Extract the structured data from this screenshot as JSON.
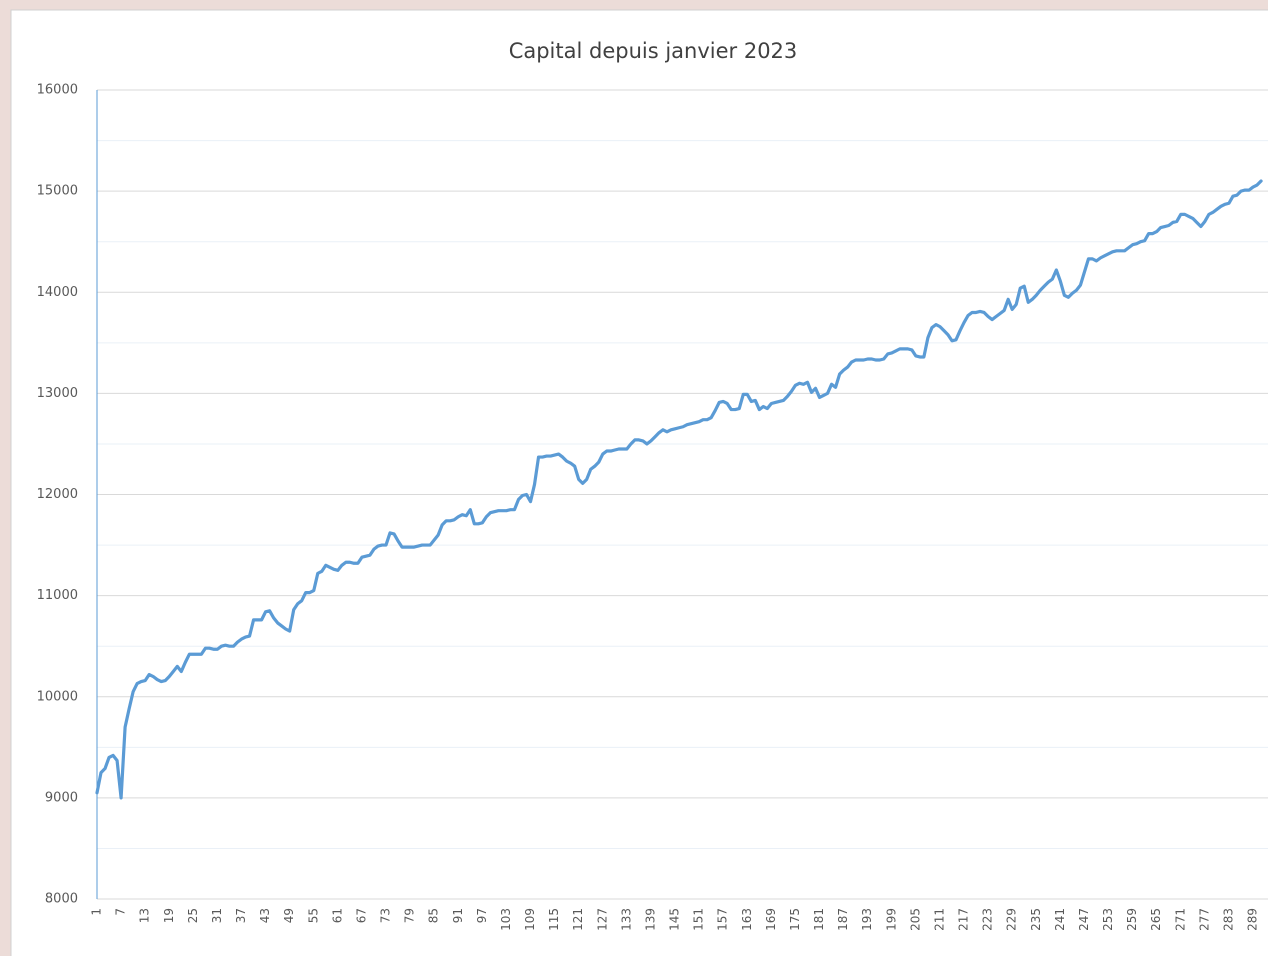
{
  "chart_data": {
    "type": "line",
    "title": "Capital depuis janvier 2023",
    "categories": [
      1,
      null,
      null,
      null,
      null,
      null,
      7,
      null,
      null,
      null,
      null,
      null,
      13,
      null,
      null,
      null,
      null,
      null,
      19,
      null,
      null,
      null,
      null,
      null,
      25,
      null,
      null,
      null,
      null,
      null,
      31,
      null,
      null,
      null,
      null,
      null,
      37,
      null,
      null,
      null,
      null,
      null,
      43,
      null,
      null,
      null,
      null,
      null,
      49,
      null,
      null,
      null,
      null,
      null,
      55,
      null,
      null,
      null,
      null,
      null,
      61,
      null,
      null,
      null,
      null,
      null,
      67,
      null,
      null,
      null,
      null,
      null,
      73,
      null,
      null,
      null,
      null,
      null,
      79,
      null,
      null,
      null,
      null,
      null,
      85,
      null,
      null,
      null,
      null,
      null,
      91,
      null,
      null,
      null,
      null,
      null,
      97,
      null,
      null,
      null,
      null,
      null,
      103,
      null,
      null,
      null,
      null,
      null,
      109,
      null,
      null,
      null,
      null,
      null,
      115,
      null,
      null,
      null,
      null,
      null,
      121,
      null,
      null,
      null,
      null,
      null,
      127,
      null,
      null,
      null,
      null,
      null,
      133,
      null,
      null,
      null,
      null,
      null,
      139,
      null,
      null,
      null,
      null,
      null,
      145,
      null,
      null,
      null,
      null,
      null,
      151,
      null,
      null,
      null,
      null,
      null,
      157,
      null,
      null,
      null,
      null,
      null,
      163,
      null,
      null,
      null,
      null,
      null,
      169,
      null,
      null,
      null,
      null,
      null,
      175,
      null,
      null,
      null,
      null,
      null,
      181,
      null,
      null,
      null,
      null,
      null,
      187,
      null,
      null,
      null,
      null,
      null,
      193,
      null,
      null,
      null,
      null,
      null,
      199,
      null,
      null,
      null,
      null,
      null,
      205,
      null,
      null,
      null,
      null,
      null,
      211,
      null,
      null,
      null,
      null,
      null,
      217,
      null,
      null,
      null,
      null,
      null,
      223,
      null,
      null,
      null,
      null,
      null,
      229,
      null,
      null,
      null,
      null,
      null,
      235,
      null,
      null,
      null,
      null,
      null,
      241,
      null,
      null,
      null,
      null,
      null,
      247,
      null,
      null,
      null,
      null,
      null,
      253,
      null,
      null,
      null,
      null,
      null,
      259,
      null,
      null,
      null,
      null,
      null,
      265,
      null,
      null,
      null,
      null,
      null,
      271,
      null,
      null,
      null,
      null,
      null,
      277,
      null,
      null,
      null,
      null,
      null,
      283,
      null,
      null,
      null,
      null,
      null,
      289,
      null,
      null
    ],
    "values": [
      9050,
      9250,
      9290,
      9400,
      9420,
      9370,
      9000,
      9700,
      9880,
      10050,
      10130,
      10150,
      10160,
      10220,
      10200,
      10170,
      10150,
      10160,
      10200,
      10250,
      10300,
      10250,
      10340,
      10420,
      10420,
      10420,
      10420,
      10480,
      10480,
      10470,
      10470,
      10500,
      10510,
      10500,
      10500,
      10540,
      10570,
      10590,
      10600,
      10760,
      10760,
      10760,
      10840,
      10850,
      10780,
      10730,
      10700,
      10670,
      10650,
      10860,
      10920,
      10950,
      11030,
      11030,
      11050,
      11220,
      11240,
      11300,
      11280,
      11260,
      11250,
      11300,
      11330,
      11330,
      11320,
      11320,
      11380,
      11390,
      11400,
      11460,
      11490,
      11500,
      11500,
      11620,
      11610,
      11540,
      11480,
      11480,
      11480,
      11480,
      11490,
      11500,
      11500,
      11500,
      11550,
      11600,
      11700,
      11740,
      11740,
      11750,
      11780,
      11800,
      11790,
      11850,
      11710,
      11710,
      11720,
      11780,
      11820,
      11830,
      11840,
      11840,
      11840,
      11850,
      11850,
      11950,
      11990,
      12000,
      11930,
      12100,
      12370,
      12370,
      12380,
      12380,
      12390,
      12400,
      12370,
      12330,
      12310,
      12280,
      12150,
      12110,
      12150,
      12250,
      12280,
      12320,
      12400,
      12430,
      12430,
      12440,
      12450,
      12450,
      12450,
      12500,
      12540,
      12540,
      12530,
      12500,
      12530,
      12570,
      12610,
      12640,
      12620,
      12640,
      12650,
      12660,
      12670,
      12690,
      12700,
      12710,
      12720,
      12740,
      12740,
      12760,
      12830,
      12910,
      12920,
      12900,
      12840,
      12840,
      12850,
      12990,
      12990,
      12920,
      12930,
      12840,
      12870,
      12850,
      12900,
      12910,
      12920,
      12930,
      12970,
      13020,
      13080,
      13100,
      13090,
      13110,
      13010,
      13050,
      12960,
      12980,
      13000,
      13090,
      13060,
      13190,
      13230,
      13260,
      13310,
      13330,
      13330,
      13330,
      13340,
      13340,
      13330,
      13330,
      13340,
      13390,
      13400,
      13420,
      13440,
      13440,
      13440,
      13430,
      13370,
      13360,
      13360,
      13550,
      13650,
      13680,
      13660,
      13620,
      13580,
      13520,
      13530,
      13620,
      13700,
      13770,
      13800,
      13800,
      13810,
      13800,
      13760,
      13730,
      13760,
      13790,
      13820,
      13930,
      13830,
      13880,
      14040,
      14060,
      13900,
      13930,
      13970,
      14020,
      14060,
      14100,
      14130,
      14220,
      14110,
      13970,
      13950,
      13990,
      14020,
      14070,
      14200,
      14330,
      14330,
      14310,
      14340,
      14360,
      14380,
      14400,
      14410,
      14410,
      14410,
      14440,
      14470,
      14480,
      14500,
      14510,
      14580,
      14580,
      14600,
      14640,
      14650,
      14660,
      14690,
      14700,
      14770,
      14770,
      14750,
      14730,
      14690,
      14650,
      14700,
      14770,
      14790,
      14820,
      14850,
      14870,
      14880,
      14950,
      14960,
      15000,
      15010,
      15010,
      15040,
      15060,
      15100
    ],
    "color": "#5b9bd5",
    "ylim": [
      8000,
      16000
    ],
    "yticks": [
      8000,
      9000,
      10000,
      11000,
      12000,
      13000,
      14000,
      15000,
      16000
    ],
    "grid": true,
    "minor_grid": true
  }
}
